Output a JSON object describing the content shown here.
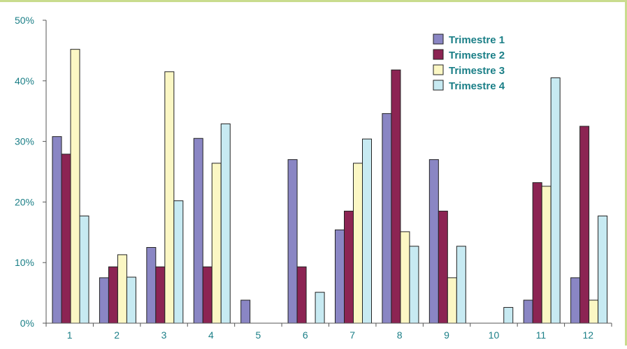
{
  "colors": {
    "frame": "#c9dc8e",
    "axis": "#555555",
    "text": "#1b7f87",
    "series": [
      "#8a86c4",
      "#8c2453",
      "#fbf7c4",
      "#c7eaf2"
    ]
  },
  "chart_data": {
    "type": "bar",
    "title": "",
    "xlabel": "",
    "ylabel": "",
    "categories": [
      "1",
      "2",
      "3",
      "4",
      "5",
      "6",
      "7",
      "8",
      "9",
      "10",
      "11",
      "12"
    ],
    "y_ticks": [
      "0%",
      "10%",
      "20%",
      "30%",
      "40%",
      "50%"
    ],
    "ylim": [
      0,
      50
    ],
    "grid": false,
    "legend_position": "top-right",
    "series": [
      {
        "name": "Trimestre 1",
        "values": [
          30.8,
          7.5,
          12.5,
          30.5,
          3.8,
          27.0,
          15.4,
          34.6,
          27.0,
          0,
          3.8,
          7.5
        ]
      },
      {
        "name": "Trimestre 2",
        "values": [
          27.9,
          9.3,
          9.3,
          9.3,
          0,
          9.3,
          18.5,
          41.8,
          18.5,
          0,
          23.2,
          32.5
        ]
      },
      {
        "name": "Trimestre 3",
        "values": [
          45.2,
          11.3,
          41.5,
          26.4,
          0,
          0,
          26.4,
          15.1,
          7.5,
          0,
          22.6,
          3.8
        ]
      },
      {
        "name": "Trimestre 4",
        "values": [
          17.7,
          7.6,
          20.2,
          32.9,
          0,
          5.1,
          30.4,
          12.7,
          12.7,
          2.6,
          40.5,
          17.7
        ]
      }
    ]
  }
}
